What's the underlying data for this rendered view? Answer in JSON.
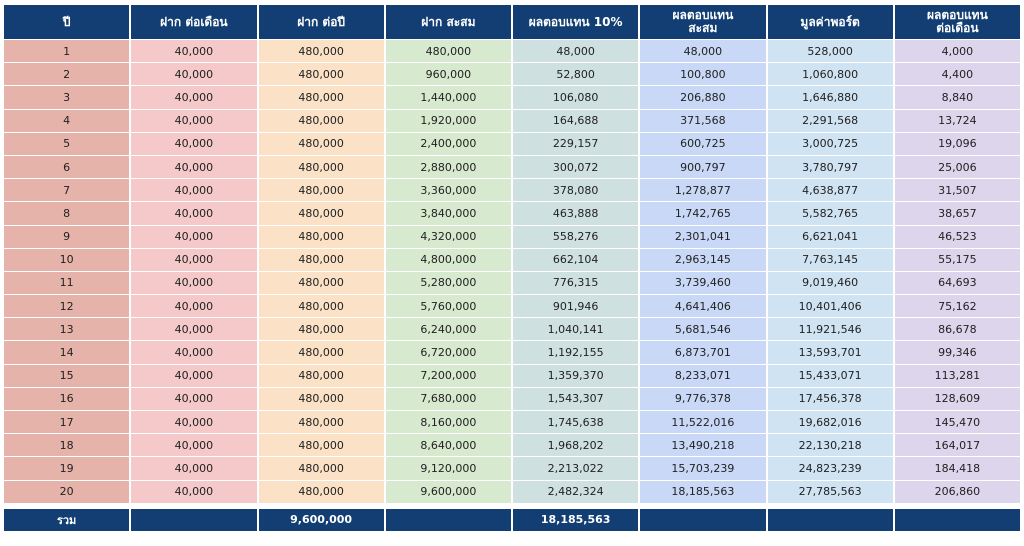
{
  "headers": [
    "ปี",
    "ฝาก ต่อเดือน",
    "ฝาก ต่อปี",
    "ฝาก สะสม",
    "ผลตอบแทน 10%",
    "ผลตอบแทน\nสะสม",
    "มูลค่าพอร์ต",
    "ผลตอบแทน\nต่อเดือน"
  ],
  "rows": [
    [
      "1",
      "40,000",
      "480,000",
      "480,000",
      "48,000",
      "48,000",
      "528,000",
      "4,000"
    ],
    [
      "2",
      "40,000",
      "480,000",
      "960,000",
      "52,800",
      "100,800",
      "1,060,800",
      "4,400"
    ],
    [
      "3",
      "40,000",
      "480,000",
      "1,440,000",
      "106,080",
      "206,880",
      "1,646,880",
      "8,840"
    ],
    [
      "4",
      "40,000",
      "480,000",
      "1,920,000",
      "164,688",
      "371,568",
      "2,291,568",
      "13,724"
    ],
    [
      "5",
      "40,000",
      "480,000",
      "2,400,000",
      "229,157",
      "600,725",
      "3,000,725",
      "19,096"
    ],
    [
      "6",
      "40,000",
      "480,000",
      "2,880,000",
      "300,072",
      "900,797",
      "3,780,797",
      "25,006"
    ],
    [
      "7",
      "40,000",
      "480,000",
      "3,360,000",
      "378,080",
      "1,278,877",
      "4,638,877",
      "31,507"
    ],
    [
      "8",
      "40,000",
      "480,000",
      "3,840,000",
      "463,888",
      "1,742,765",
      "5,582,765",
      "38,657"
    ],
    [
      "9",
      "40,000",
      "480,000",
      "4,320,000",
      "558,276",
      "2,301,041",
      "6,621,041",
      "46,523"
    ],
    [
      "10",
      "40,000",
      "480,000",
      "4,800,000",
      "662,104",
      "2,963,145",
      "7,763,145",
      "55,175"
    ],
    [
      "11",
      "40,000",
      "480,000",
      "5,280,000",
      "776,315",
      "3,739,460",
      "9,019,460",
      "64,693"
    ],
    [
      "12",
      "40,000",
      "480,000",
      "5,760,000",
      "901,946",
      "4,641,406",
      "10,401,406",
      "75,162"
    ],
    [
      "13",
      "40,000",
      "480,000",
      "6,240,000",
      "1,040,141",
      "5,681,546",
      "11,921,546",
      "86,678"
    ],
    [
      "14",
      "40,000",
      "480,000",
      "6,720,000",
      "1,192,155",
      "6,873,701",
      "13,593,701",
      "99,346"
    ],
    [
      "15",
      "40,000",
      "480,000",
      "7,200,000",
      "1,359,370",
      "8,233,071",
      "15,433,071",
      "113,281"
    ],
    [
      "16",
      "40,000",
      "480,000",
      "7,680,000",
      "1,543,307",
      "9,776,378",
      "17,456,378",
      "128,609"
    ],
    [
      "17",
      "40,000",
      "480,000",
      "8,160,000",
      "1,745,638",
      "11,522,016",
      "19,682,016",
      "145,470"
    ],
    [
      "18",
      "40,000",
      "480,000",
      "8,640,000",
      "1,968,202",
      "13,490,218",
      "22,130,218",
      "164,017"
    ],
    [
      "19",
      "40,000",
      "480,000",
      "9,120,000",
      "2,213,022",
      "15,703,239",
      "24,823,239",
      "184,418"
    ],
    [
      "20",
      "40,000",
      "480,000",
      "9,600,000",
      "2,482,324",
      "18,185,563",
      "27,785,563",
      "206,860"
    ]
  ],
  "footer": [
    "รวม",
    "",
    "9,600,000",
    "",
    "18,185,563",
    "",
    "",
    ""
  ],
  "colors": {
    "header": "#123e73",
    "columns": [
      "#e6b3ab",
      "#f5c9c9",
      "#fbe2c6",
      "#d7e9cf",
      "#cfe0e0",
      "#c8d8f6",
      "#d0e3f3",
      "#ddd5ec"
    ]
  }
}
